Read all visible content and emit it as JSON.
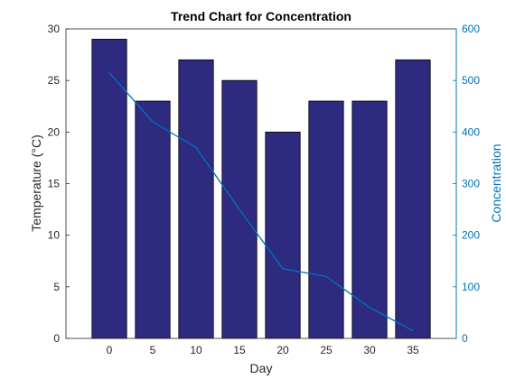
{
  "chart_data": {
    "type": "bar",
    "title": "Trend Chart for Concentration",
    "xlabel": "Day",
    "ylabel_left": "Temperature (°C)",
    "ylabel_right": "Concentration",
    "x": [
      0,
      5,
      10,
      15,
      20,
      25,
      30,
      35
    ],
    "x_ticks": [
      "0",
      "5",
      "10",
      "15",
      "20",
      "25",
      "30",
      "35"
    ],
    "xlim": [
      -5,
      40
    ],
    "ylim_left": [
      0,
      30
    ],
    "ylim_right": [
      0,
      600
    ],
    "yticks_left": [
      "0",
      "5",
      "10",
      "15",
      "20",
      "25",
      "30"
    ],
    "yticks_right": [
      "0",
      "100",
      "200",
      "300",
      "400",
      "500",
      "600"
    ],
    "series": [
      {
        "type": "bar",
        "axis": "left",
        "values": [
          29,
          23,
          27,
          25,
          20,
          23,
          23,
          27
        ]
      },
      {
        "type": "line",
        "axis": "right",
        "values": [
          515,
          420,
          370,
          250,
          135,
          120,
          60,
          15
        ]
      }
    ],
    "colors": {
      "bar_fill": "#2e2a80",
      "bar_edge": "#000000",
      "line": "#0072bd",
      "right_axis": "#0072bd",
      "axis": "#262626"
    },
    "grid": false,
    "legend": "none"
  }
}
